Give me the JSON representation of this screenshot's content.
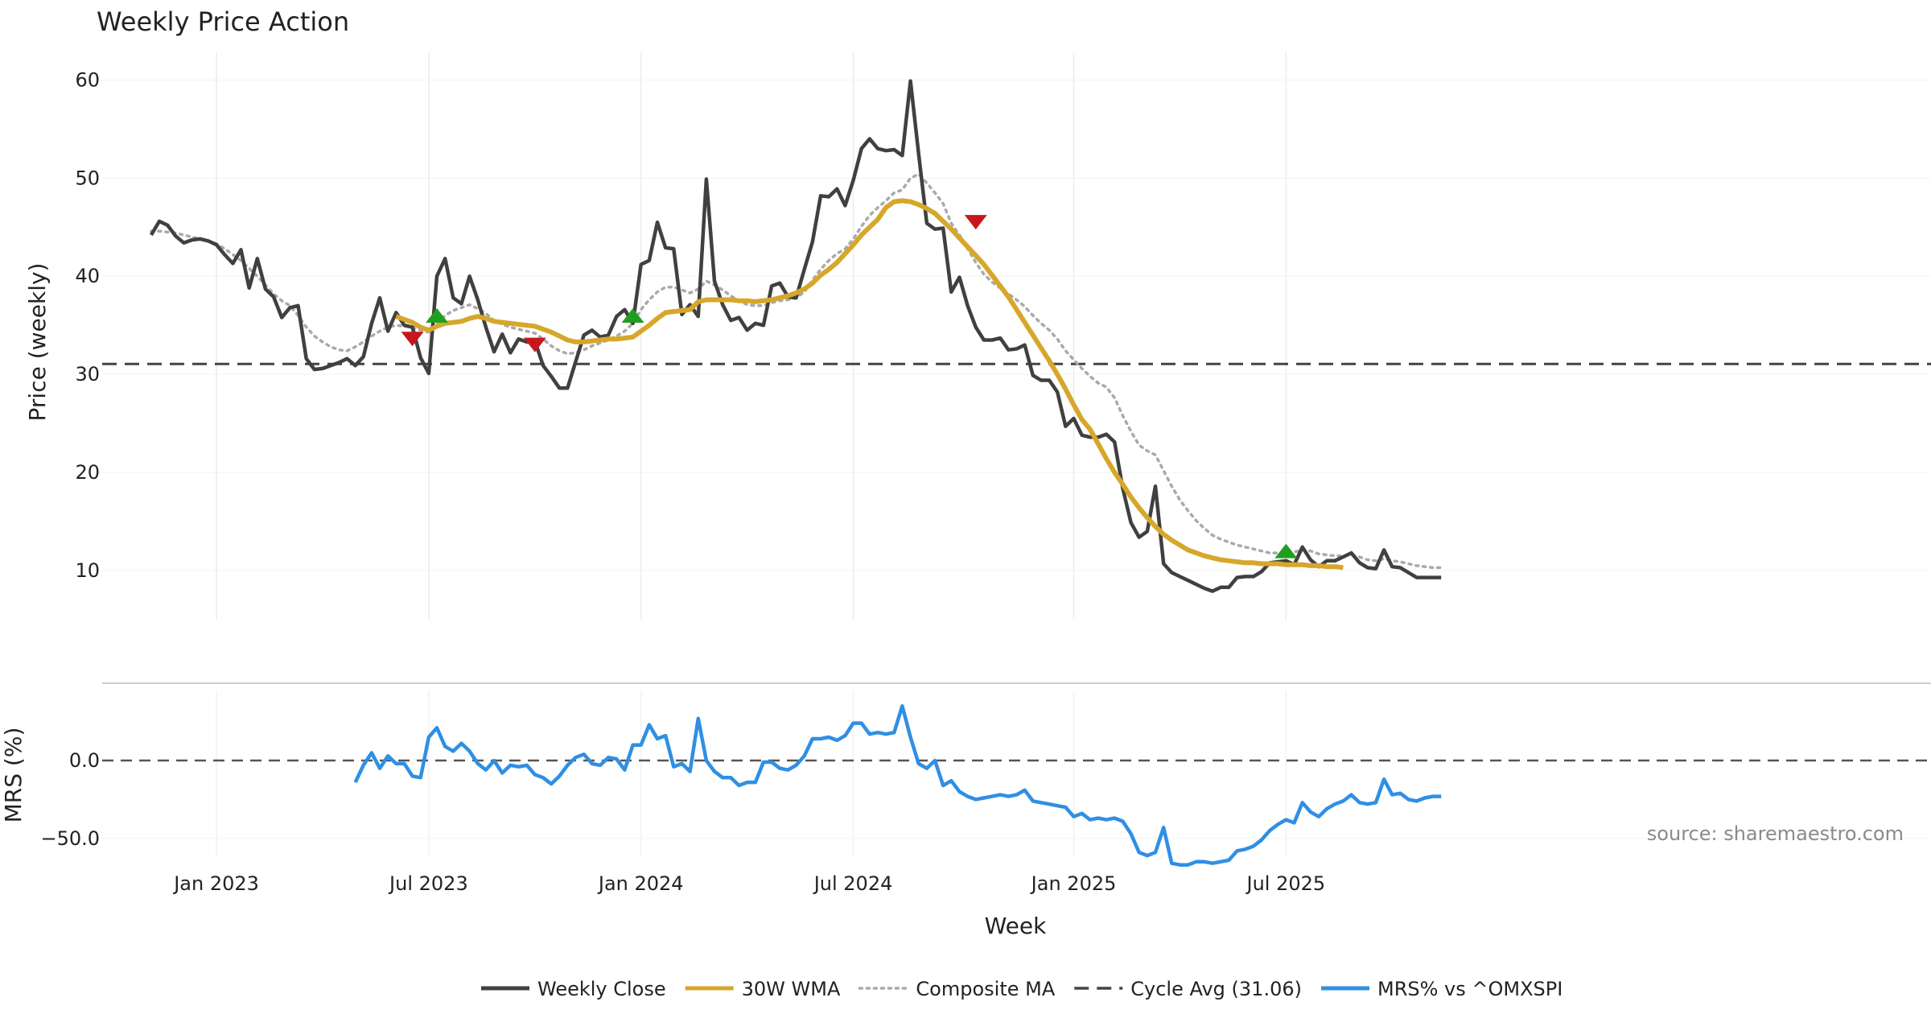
{
  "chart_data": {
    "type": "line",
    "title": "Weekly Price Action",
    "source": "source: sharemaestro.com",
    "x_range": [
      -6,
      218
    ],
    "x_ticks": [
      {
        "week": 8,
        "label": "Jan 2023"
      },
      {
        "week": 34,
        "label": "Jul 2023"
      },
      {
        "week": 60,
        "label": "Jan 2024"
      },
      {
        "week": 86,
        "label": "Jul 2024"
      },
      {
        "week": 113,
        "label": "Jan 2025"
      },
      {
        "week": 139,
        "label": "Jul 2025"
      }
    ],
    "xlabel": "Week",
    "price_panel": {
      "ylabel": "Price (weekly)",
      "ylim": [
        5,
        62
      ],
      "yticks": [
        10,
        20,
        30,
        40,
        50,
        60
      ],
      "cycle_avg": 31.06
    },
    "mrs_panel": {
      "ylabel": "MRS (%)",
      "ylim": [
        -62,
        45
      ],
      "yticks": [
        0.0,
        -50.0
      ],
      "ytick_labels": [
        "0.0",
        "−50.0"
      ]
    },
    "series": [
      {
        "name": "Weekly Close",
        "color": "#404040",
        "panel": "price",
        "x_start": 0,
        "values": [
          44.2,
          45.6,
          45.2,
          44.1,
          43.4,
          43.7,
          43.8,
          43.6,
          43.2,
          42.2,
          41.3,
          42.7,
          38.8,
          41.8,
          38.7,
          37.9,
          35.8,
          36.8,
          37.0,
          31.6,
          30.5,
          30.6,
          30.9,
          31.2,
          31.6,
          30.9,
          31.8,
          35.2,
          37.8,
          34.4,
          36.3,
          35.0,
          34.8,
          31.7,
          30.1,
          40.0,
          41.8,
          37.8,
          37.2,
          40.0,
          37.6,
          34.8,
          32.3,
          34.1,
          32.2,
          33.6,
          33.3,
          33.4,
          30.9,
          29.8,
          28.6,
          28.6,
          31.3,
          34.0,
          34.5,
          33.8,
          34.0,
          35.9,
          36.6,
          35.2,
          41.2,
          41.6,
          45.5,
          42.9,
          42.8,
          36.1,
          37.1,
          35.9,
          49.9,
          39.5,
          37.1,
          35.5,
          35.8,
          34.5,
          35.2,
          35.0,
          39.0,
          39.3,
          37.9,
          37.8,
          40.7,
          43.5,
          48.2,
          48.1,
          48.9,
          47.2,
          49.8,
          53.0,
          54.0,
          53.0,
          52.8,
          52.9,
          52.3,
          59.9,
          52.5,
          45.4,
          44.8,
          44.9,
          38.4,
          39.9,
          37.0,
          34.8,
          33.5,
          33.5,
          33.7,
          32.5,
          32.6,
          33.0,
          29.9,
          29.4,
          29.4,
          28.2,
          24.7,
          25.5,
          23.8,
          23.6,
          23.6,
          23.9,
          23.1,
          18.4,
          14.9,
          13.4,
          14.0,
          18.6,
          10.7,
          9.8,
          9.4,
          9.0,
          8.6,
          8.2,
          7.9,
          8.3,
          8.3,
          9.3,
          9.4,
          9.4,
          9.9,
          10.8,
          10.9,
          11.0,
          10.6,
          12.4,
          11.1,
          10.4,
          11.0,
          11.0,
          11.4,
          11.8,
          10.8,
          10.3,
          10.2,
          12.1,
          10.4,
          10.3,
          9.8,
          9.3,
          9.3,
          9.3,
          9.3
        ]
      },
      {
        "name": "30W WMA",
        "color": "#d6a72b",
        "panel": "price",
        "x_start": 30,
        "values": [
          35.9,
          35.6,
          35.3,
          34.8,
          34.5,
          34.9,
          35.2,
          35.3,
          35.4,
          35.7,
          35.9,
          35.7,
          35.4,
          35.3,
          35.2,
          35.1,
          35.0,
          34.9,
          34.6,
          34.3,
          33.9,
          33.5,
          33.3,
          33.3,
          33.4,
          33.5,
          33.6,
          33.6,
          33.7,
          33.8,
          34.4,
          35.0,
          35.7,
          36.3,
          36.4,
          36.5,
          36.6,
          37.4,
          37.6,
          37.6,
          37.6,
          37.6,
          37.5,
          37.5,
          37.4,
          37.5,
          37.6,
          37.8,
          38.0,
          38.3,
          38.7,
          39.3,
          40.1,
          40.7,
          41.4,
          42.3,
          43.2,
          44.2,
          45.0,
          45.8,
          47.0,
          47.6,
          47.7,
          47.6,
          47.3,
          46.9,
          46.4,
          45.6,
          44.8,
          43.9,
          43.0,
          42.1,
          41.2,
          40.1,
          39.0,
          37.9,
          36.6,
          35.3,
          34.0,
          32.7,
          31.4,
          30.0,
          28.5,
          26.9,
          25.4,
          24.4,
          22.9,
          21.4,
          20.0,
          18.8,
          17.5,
          16.4,
          15.4,
          14.5,
          13.7,
          13.1,
          12.6,
          12.1,
          11.8,
          11.5,
          11.3,
          11.1,
          11.0,
          10.9,
          10.8,
          10.8,
          10.7,
          10.7,
          10.7,
          10.6,
          10.6,
          10.6,
          10.5,
          10.5,
          10.4,
          10.4,
          10.3
        ]
      },
      {
        "name": "Composite MA",
        "color": "#aaaaaa",
        "panel": "price",
        "x_start": 0,
        "values": [
          44.6,
          44.6,
          44.5,
          44.4,
          44.2,
          44.0,
          43.8,
          43.6,
          43.3,
          42.8,
          42.2,
          41.6,
          40.8,
          40.0,
          39.1,
          38.2,
          37.5,
          37.0,
          36.0,
          34.8,
          33.9,
          33.3,
          32.8,
          32.5,
          32.4,
          32.8,
          33.3,
          33.9,
          34.4,
          34.8,
          35.0,
          34.9,
          34.8,
          34.5,
          34.3,
          35.1,
          36.0,
          36.5,
          36.8,
          37.1,
          36.7,
          36.2,
          35.5,
          35.1,
          34.8,
          34.6,
          34.4,
          34.2,
          33.6,
          32.9,
          32.4,
          32.1,
          32.2,
          32.5,
          32.9,
          33.2,
          33.5,
          33.9,
          34.4,
          35.2,
          36.6,
          37.6,
          38.4,
          38.9,
          38.9,
          38.6,
          38.3,
          38.7,
          39.5,
          39.1,
          38.6,
          38.0,
          37.5,
          37.1,
          37.0,
          37.0,
          37.3,
          37.5,
          37.6,
          37.8,
          38.4,
          39.6,
          40.7,
          41.6,
          42.3,
          42.8,
          43.8,
          45.1,
          46.2,
          47.0,
          47.7,
          48.5,
          48.8,
          50.0,
          50.4,
          49.5,
          48.5,
          47.4,
          45.4,
          44.2,
          42.8,
          41.4,
          40.2,
          39.4,
          38.8,
          38.2,
          37.6,
          36.9,
          36.0,
          35.2,
          34.5,
          33.6,
          32.4,
          31.5,
          30.6,
          29.8,
          29.1,
          28.7,
          27.6,
          25.8,
          24.2,
          22.8,
          22.2,
          21.8,
          20.2,
          18.6,
          17.2,
          16.1,
          15.1,
          14.3,
          13.6,
          13.2,
          12.9,
          12.6,
          12.4,
          12.2,
          12.0,
          11.8,
          11.8,
          11.9,
          11.9,
          12.1,
          12.0,
          11.7,
          11.6,
          11.5,
          11.5,
          11.6,
          11.4,
          11.1,
          11.0,
          11.2,
          11.0,
          10.9,
          10.7,
          10.5,
          10.4,
          10.3,
          10.3
        ]
      },
      {
        "name": "Cycle Avg (31.06)",
        "color": "#444444",
        "panel": "price",
        "value": 31.06
      },
      {
        "name": "MRS% vs ^OMXSPI",
        "color": "#2f8fe4",
        "panel": "mrs",
        "x_start": 25,
        "values": [
          -14,
          -3,
          5,
          -5,
          3,
          -2,
          -2,
          -10,
          -11,
          15,
          21,
          9,
          6,
          11,
          6,
          -2,
          -6,
          0,
          -8,
          -3,
          -4,
          -3,
          -9,
          -11,
          -15,
          -10,
          -3,
          2,
          4,
          -2,
          -3,
          2,
          1,
          -6,
          10,
          10,
          23,
          14,
          16,
          -4,
          -2,
          -7,
          27,
          0,
          -7,
          -11,
          -11,
          -16,
          -14,
          -14,
          -1,
          -1,
          -5,
          -6,
          -3,
          3,
          14,
          14,
          15,
          13,
          16,
          24,
          24,
          17,
          18,
          17,
          18,
          35,
          15,
          -2,
          -5,
          0,
          -16,
          -13,
          -20,
          -23,
          -25,
          -24,
          -23,
          -22,
          -23,
          -22,
          -19,
          -26,
          -27,
          -28,
          -29,
          -30,
          -36,
          -34,
          -38,
          -37,
          -38,
          -37,
          -39,
          -47,
          -59,
          -61,
          -59,
          -43,
          -66,
          -67,
          -67,
          -65,
          -65,
          -66,
          -65,
          -64,
          -58,
          -57,
          -55,
          -51,
          -45,
          -41,
          -38,
          -40,
          -27,
          -33,
          -36,
          -31,
          -28,
          -26,
          -22,
          -27,
          -28,
          -27,
          -12,
          -22,
          -21,
          -25,
          -26,
          -24,
          -23,
          -23
        ]
      }
    ],
    "signals": {
      "buy": [
        {
          "week": 35,
          "value": 36.0
        },
        {
          "week": 59,
          "value": 36.0
        },
        {
          "week": 139,
          "value": 12.0
        }
      ],
      "sell": [
        {
          "week": 32,
          "value": 33.6
        },
        {
          "week": 47,
          "value": 33.0
        },
        {
          "week": 101,
          "value": 45.5
        }
      ]
    },
    "legend": [
      {
        "label": "Weekly Close",
        "style": "solid",
        "color": "#404040"
      },
      {
        "label": "30W WMA",
        "style": "solid",
        "color": "#d6a72b"
      },
      {
        "label": "Composite MA",
        "style": "dotted",
        "color": "#aaaaaa"
      },
      {
        "label": "Cycle Avg (31.06)",
        "style": "dashed",
        "color": "#444444"
      },
      {
        "label": "MRS% vs ^OMXSPI",
        "style": "solid",
        "color": "#2f8fe4"
      }
    ],
    "legend_position": "bottom-center",
    "buy_color": "#1f9e1f",
    "sell_color": "#c9161d"
  }
}
